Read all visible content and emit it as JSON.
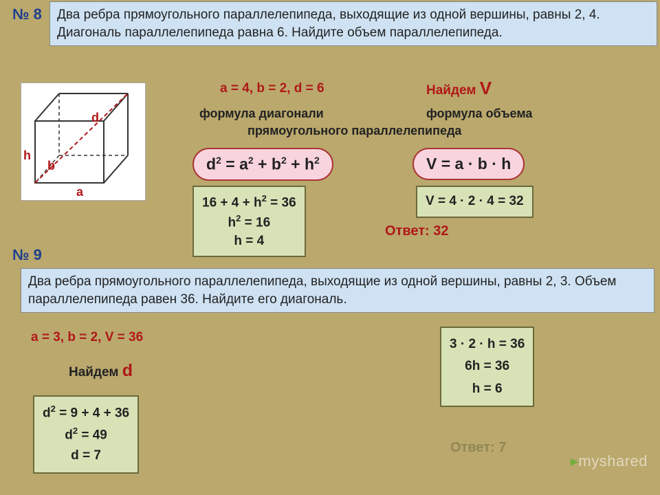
{
  "p8": {
    "num": "№ 8",
    "text": "Два ребра прямоугольного параллелепипеда, выходящие из одной вершины, равны 2, 4. Диагональ параллелепипеда равна 6.\nНайдите объем параллелепипеда.",
    "given": "a = 4,   b = 2,  d = 6",
    "find": "Найдем",
    "find_var": "V",
    "label_diag": "формула диагонали",
    "label_vol": "формула объема",
    "label_bottom": "прямоугольного параллелепипеда",
    "formula_d_html": "d<sup>2</sup> = a<sup>2</sup> + b<sup>2</sup> + h<sup>2</sup>",
    "formula_v": "V = a · b · h",
    "calc_d_html": "16 + 4 + h<sup>2</sup> = 36<br>h<sup>2</sup> = 16<br>h = 4",
    "calc_v": "V = 4 · 2 · 4 = 32",
    "answer": "Ответ: 32",
    "cube": {
      "a": "a",
      "b": "b",
      "h": "h",
      "d": "d"
    }
  },
  "p9": {
    "num": "№ 9",
    "text": "Два ребра прямоугольного параллелепипеда, выходящие из одной вершины, равны 2, 3. Объем параллелепипеда равен 36. Найдите его диагональ.",
    "given": "a = 3,   b = 2,  V = 36",
    "find": "Найдем",
    "find_var": "d",
    "calc_h_html": "3 · 2 · h = 36<br>6h = 36<br>h = 6",
    "calc_d_html": "d<sup>2</sup> = 9 + 4 + 36<br>d<sup>2</sup> = 49<br>d = 7",
    "answer": "Ответ: 7"
  },
  "colors": {
    "bg": "#baa86d",
    "problem_bg": "#cfe2f3",
    "pill_bg": "#f8d4df",
    "pill_border": "#a33",
    "calc_bg": "#d8e2b7",
    "calc_border": "#6a6a3a",
    "accent": "#b01818",
    "num": "#1f3f8c"
  },
  "watermark": "myshared"
}
